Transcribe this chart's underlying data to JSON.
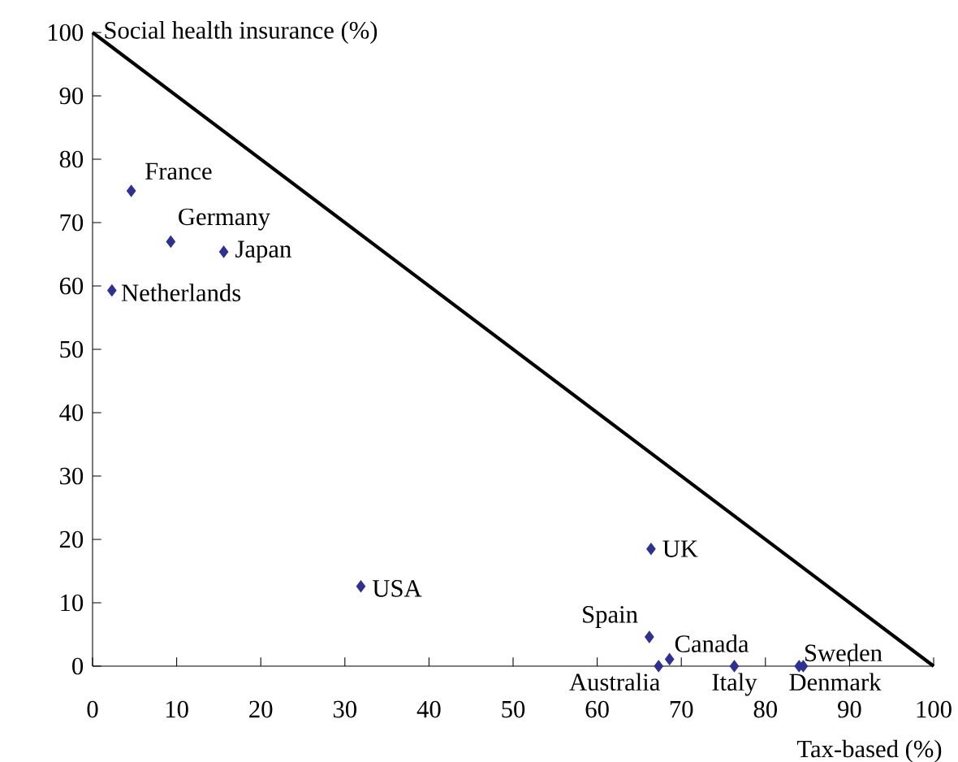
{
  "chart_data": {
    "type": "scatter",
    "xlabel": "Tax-based (%)",
    "ylabel": "Social health insurance (%)",
    "xlim": [
      0,
      100
    ],
    "ylim": [
      0,
      100
    ],
    "xticks": [
      0,
      10,
      20,
      30,
      40,
      50,
      60,
      70,
      80,
      90,
      100
    ],
    "yticks": [
      0,
      10,
      20,
      30,
      40,
      50,
      60,
      70,
      80,
      90,
      100
    ],
    "marker": "diamond",
    "series": [
      {
        "type": "line",
        "color": "#000000",
        "x": [
          0,
          100
        ],
        "values": [
          100,
          0
        ],
        "marker": "none",
        "line_style": "solid"
      },
      {
        "color": "#2e3192",
        "x": [
          4.6,
          9.3,
          15.6,
          2.3,
          31.9,
          66.4,
          66.2,
          68.6,
          67.3,
          76.3,
          84,
          84.5
        ],
        "values": [
          75,
          67,
          65.4,
          59.3,
          12.6,
          18.5,
          4.6,
          1.1,
          0,
          0,
          0,
          0
        ]
      }
    ],
    "annotations": [
      {
        "text": "France",
        "x": 4.6,
        "y": 75
      },
      {
        "text": "Germany",
        "x": 9.3,
        "y": 67
      },
      {
        "text": "Japan",
        "x": 15.6,
        "y": 65.4
      },
      {
        "text": "Netherlands",
        "x": 2.3,
        "y": 59.3
      },
      {
        "text": "USA",
        "x": 31.9,
        "y": 12.6
      },
      {
        "text": "UK",
        "x": 66.4,
        "y": 18.5
      },
      {
        "text": "Spain",
        "x": 66.2,
        "y": 4.6
      },
      {
        "text": "Canada",
        "x": 68.6,
        "y": 1.1
      },
      {
        "text": "Australia",
        "x": 67.3,
        "y": 0
      },
      {
        "text": "Italy",
        "x": 76.3,
        "y": 0
      },
      {
        "text": "Denmark",
        "x": 84,
        "y": 0
      },
      {
        "text": "Sweden",
        "x": 84.5,
        "y": 0
      }
    ]
  }
}
